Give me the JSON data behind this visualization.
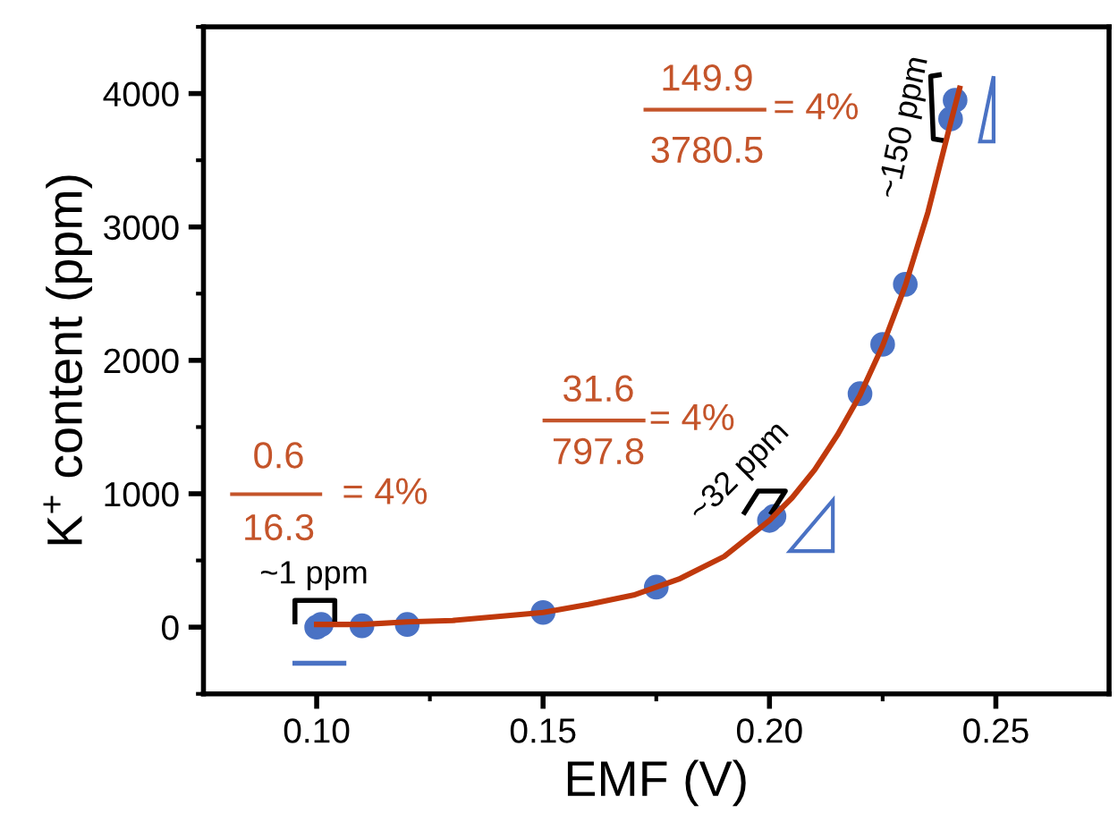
{
  "chart_data": {
    "type": "scatter",
    "xlabel": "EMF (V)",
    "ylabel": "K$^{+}$ content (ppm)",
    "xlim": [
      0.075,
      0.275
    ],
    "ylim": [
      -500,
      4500
    ],
    "xticks": [
      {
        "value": 0.1,
        "label": "0.10"
      },
      {
        "value": 0.125,
        "label": null
      },
      {
        "value": 0.15,
        "label": "0.15"
      },
      {
        "value": 0.175,
        "label": null
      },
      {
        "value": 0.2,
        "label": "0.20"
      },
      {
        "value": 0.225,
        "label": null
      },
      {
        "value": 0.25,
        "label": "0.25"
      }
    ],
    "yticks": [
      {
        "value": -500,
        "label": null
      },
      0,
      {
        "value": 500,
        "label": null
      },
      1000,
      {
        "value": 1500,
        "label": null
      },
      2000,
      {
        "value": 2500,
        "label": null
      },
      3000,
      {
        "value": 3500,
        "label": null
      },
      4000,
      {
        "value": 4500,
        "label": null
      }
    ],
    "grid": false,
    "marker": "circle",
    "series": [
      {
        "color": "#4a72c4",
        "x": [
          0.1,
          0.101,
          0.11,
          0.12,
          0.15,
          0.175,
          0.2,
          0.201,
          0.22,
          0.225,
          0.23,
          0.24,
          0.241
        ],
        "values": [
          0,
          20,
          10,
          20,
          110,
          300,
          800,
          830,
          1750,
          2120,
          2570,
          3810,
          3950
        ]
      },
      {
        "type": "line",
        "color": "#c0390c",
        "marker": "none",
        "line_style": "solid",
        "x": [
          0.1,
          0.11,
          0.12,
          0.13,
          0.14,
          0.15,
          0.16,
          0.17,
          0.18,
          0.19,
          0.2,
          0.205,
          0.21,
          0.215,
          0.22,
          0.225,
          0.23,
          0.235,
          0.24,
          0.242
        ],
        "values": [
          20,
          20,
          40,
          50,
          80,
          110,
          170,
          240,
          360,
          530,
          800,
          970,
          1180,
          1440,
          1740,
          2110,
          2560,
          3110,
          3780,
          4040
        ]
      }
    ],
    "annotations": [
      "0.6",
      "16.3",
      "= 4%",
      "~1 ppm",
      "31.6",
      "797.8",
      "= 4%",
      "~32 ppm",
      "149.9",
      "3780.5",
      "= 4%",
      "~150 ppm"
    ]
  }
}
